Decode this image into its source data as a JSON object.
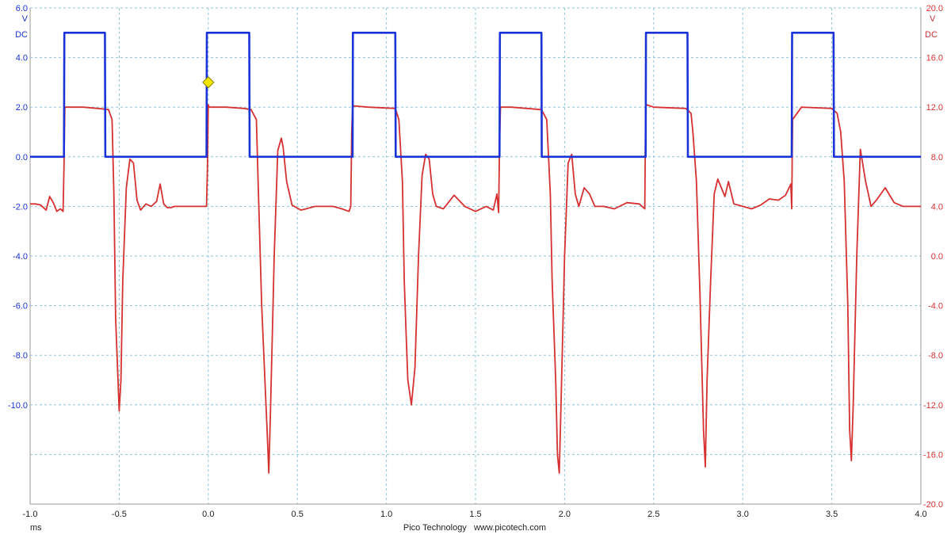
{
  "chart_data": {
    "type": "line",
    "title": "",
    "footer": "Pico Technology   www.picotech.com",
    "x_unit": "ms",
    "xlim": [
      -1.0,
      4.0
    ],
    "x_ticks": [
      "-1.0",
      "-0.5",
      "0.0",
      "0.5",
      "1.0",
      "1.5",
      "2.0",
      "2.5",
      "3.0",
      "3.5",
      "4.0"
    ],
    "left_axis": {
      "unit": "V",
      "coupling": "DC",
      "range": [
        -14.0,
        6.0
      ],
      "ticks": [
        "6.0",
        "4.0",
        "2.0",
        "0.0",
        "-2.0",
        "-4.0",
        "-6.0",
        "-8.0",
        "-10.0"
      ],
      "color": "#1a33d6"
    },
    "right_axis": {
      "unit": "V",
      "coupling": "DC",
      "range": [
        -20.0,
        20.0
      ],
      "ticks": [
        "20.0",
        "16.0",
        "12.0",
        "8.0",
        "4.0",
        "0.0",
        "-4.0",
        "-8.0",
        "-12.0",
        "-16.0",
        "-20.0"
      ],
      "color": "#d63131"
    },
    "grid": true,
    "trigger": {
      "x": 0.0,
      "y": 3.0,
      "color": "#f2e600"
    },
    "series": [
      {
        "axis": "left",
        "color": "#1a33d6",
        "x": [
          -1.0,
          -0.81,
          -0.808,
          -0.58,
          -0.578,
          -0.01,
          -0.008,
          0.23,
          0.232,
          0.81,
          0.812,
          1.05,
          1.052,
          1.635,
          1.637,
          1.87,
          1.872,
          2.455,
          2.457,
          2.69,
          2.692,
          3.275,
          3.277,
          3.51,
          3.512,
          4.0
        ],
        "y": [
          0.0,
          0.0,
          5.0,
          5.0,
          0.0,
          0.0,
          5.0,
          5.0,
          0.0,
          0.0,
          5.0,
          5.0,
          0.0,
          0.0,
          5.0,
          5.0,
          0.0,
          0.0,
          5.0,
          5.0,
          0.0,
          0.0,
          5.0,
          5.0,
          0.0,
          0.0
        ]
      },
      {
        "axis": "right",
        "color": "#d63131",
        "x": [
          -1.0,
          -0.97,
          -0.94,
          -0.91,
          -0.89,
          -0.87,
          -0.85,
          -0.83,
          -0.815,
          -0.81,
          -0.805,
          -0.8,
          -0.7,
          -0.62,
          -0.56,
          -0.54,
          -0.53,
          -0.52,
          -0.5,
          -0.49,
          -0.48,
          -0.46,
          -0.44,
          -0.42,
          -0.4,
          -0.38,
          -0.35,
          -0.32,
          -0.29,
          -0.27,
          -0.25,
          -0.23,
          -0.21,
          -0.19,
          -0.17,
          -0.1,
          -0.01,
          -0.005,
          0.0,
          0.005,
          0.01,
          0.1,
          0.2,
          0.24,
          0.27,
          0.28,
          0.3,
          0.33,
          0.34,
          0.35,
          0.37,
          0.39,
          0.41,
          0.42,
          0.44,
          0.47,
          0.52,
          0.6,
          0.7,
          0.75,
          0.79,
          0.8,
          0.805,
          0.81,
          0.815,
          0.9,
          1.05,
          1.07,
          1.09,
          1.1,
          1.11,
          1.12,
          1.14,
          1.16,
          1.18,
          1.2,
          1.22,
          1.24,
          1.26,
          1.28,
          1.32,
          1.38,
          1.44,
          1.5,
          1.56,
          1.6,
          1.62,
          1.63,
          1.635,
          1.64,
          1.7,
          1.87,
          1.9,
          1.92,
          1.93,
          1.95,
          1.96,
          1.97,
          1.98,
          2.0,
          2.02,
          2.04,
          2.06,
          2.08,
          2.11,
          2.14,
          2.17,
          2.22,
          2.28,
          2.35,
          2.42,
          2.45,
          2.455,
          2.46,
          2.5,
          2.68,
          2.71,
          2.72,
          2.74,
          2.76,
          2.78,
          2.79,
          2.8,
          2.82,
          2.84,
          2.86,
          2.88,
          2.9,
          2.92,
          2.95,
          3.0,
          3.05,
          3.1,
          3.15,
          3.2,
          3.24,
          3.27,
          3.275,
          3.28,
          3.33,
          3.5,
          3.53,
          3.55,
          3.57,
          3.59,
          3.6,
          3.61,
          3.62,
          3.64,
          3.66,
          3.69,
          3.72,
          3.75,
          3.8,
          3.85,
          3.9,
          3.95,
          4.0
        ],
        "y": [
          4.2,
          4.2,
          4.1,
          3.7,
          4.8,
          4.3,
          3.6,
          3.8,
          3.6,
          7.0,
          12.0,
          12.0,
          12.0,
          11.9,
          11.8,
          11.0,
          5.0,
          -5.0,
          -12.5,
          -10.0,
          -2.0,
          5.5,
          7.8,
          7.5,
          4.5,
          3.7,
          4.2,
          4.0,
          4.4,
          5.8,
          4.2,
          3.9,
          3.9,
          4.0,
          4.0,
          4.0,
          4.0,
          7.0,
          12.2,
          12.0,
          12.0,
          12.0,
          11.9,
          11.8,
          11.0,
          6.0,
          -4.0,
          -14.0,
          -17.5,
          -12.0,
          0.0,
          8.5,
          9.5,
          8.8,
          6.0,
          4.1,
          3.7,
          4.0,
          4.0,
          3.8,
          3.6,
          4.0,
          10.0,
          12.0,
          12.1,
          12.0,
          11.9,
          11.0,
          6.0,
          -2.0,
          -6.0,
          -10.0,
          -12.0,
          -9.0,
          0.0,
          6.5,
          8.2,
          7.8,
          5.0,
          4.0,
          3.8,
          4.9,
          4.0,
          3.6,
          4.0,
          3.7,
          5.0,
          3.5,
          9.0,
          12.0,
          12.0,
          11.8,
          11.0,
          5.0,
          -2.0,
          -10.0,
          -16.0,
          -17.5,
          -12.0,
          0.0,
          7.5,
          8.2,
          5.0,
          4.0,
          5.5,
          5.0,
          4.0,
          4.0,
          3.8,
          4.3,
          4.2,
          3.8,
          12.0,
          12.2,
          12.0,
          11.9,
          11.5,
          10.0,
          6.0,
          -3.0,
          -14.0,
          -17.0,
          -10.0,
          -2.0,
          5.0,
          6.2,
          5.5,
          4.8,
          6.0,
          4.2,
          4.0,
          3.8,
          4.1,
          4.6,
          4.5,
          4.9,
          5.8,
          3.8,
          11.0,
          12.0,
          11.9,
          11.5,
          10.0,
          6.0,
          -4.0,
          -14.0,
          -16.5,
          -12.0,
          0.0,
          8.6,
          6.0,
          4.0,
          4.5,
          5.5,
          4.3,
          4.0,
          4.0,
          4.0
        ]
      }
    ]
  }
}
